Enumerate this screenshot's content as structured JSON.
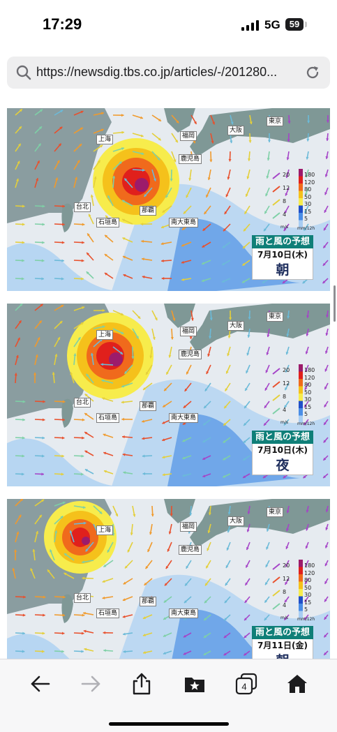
{
  "status_bar": {
    "time": "17:29",
    "network": "5G",
    "battery": "59"
  },
  "browser": {
    "url": "https://newsdig.tbs.co.jp/articles/-/201280...",
    "search_icon": "magnifier-icon",
    "reload_icon": "reload-icon"
  },
  "map_labels": {
    "tokyo": "東京",
    "osaka": "大阪",
    "fukuoka": "福岡",
    "shanghai": "上海",
    "kagoshima": "鹿児島",
    "taipei": "台北",
    "naha": "那覇",
    "ishigaki": "石垣島",
    "minamidaito": "南大東島"
  },
  "legend": {
    "wind_values": [
      "20",
      "12",
      "8",
      "4"
    ],
    "wind_unit": "m/s",
    "rain_values": [
      "180",
      "120",
      "80",
      "50",
      "30",
      "15",
      "5"
    ],
    "rain_unit": "mm/12h",
    "rain_colors": [
      "#9c1b6b",
      "#e0201c",
      "#f06a1c",
      "#f5c11b",
      "#f7ec4c",
      "#1f4fc8",
      "#4a8ee6",
      "#a8cdf3"
    ]
  },
  "panels": [
    {
      "title": "雨と風の予想",
      "date": "7月10日(木)",
      "period": "朝"
    },
    {
      "title": "雨と風の予想",
      "date": "7月10日(木)",
      "period": "夜"
    },
    {
      "title": "雨と風の予想",
      "date": "7月11日(金)",
      "period": "朝"
    }
  ],
  "toolbar": {
    "back": "back-arrow-icon",
    "forward": "forward-arrow-icon",
    "share": "share-icon",
    "bookmarks": "bookmarks-icon",
    "tabs_count": "4",
    "home": "home-icon"
  }
}
